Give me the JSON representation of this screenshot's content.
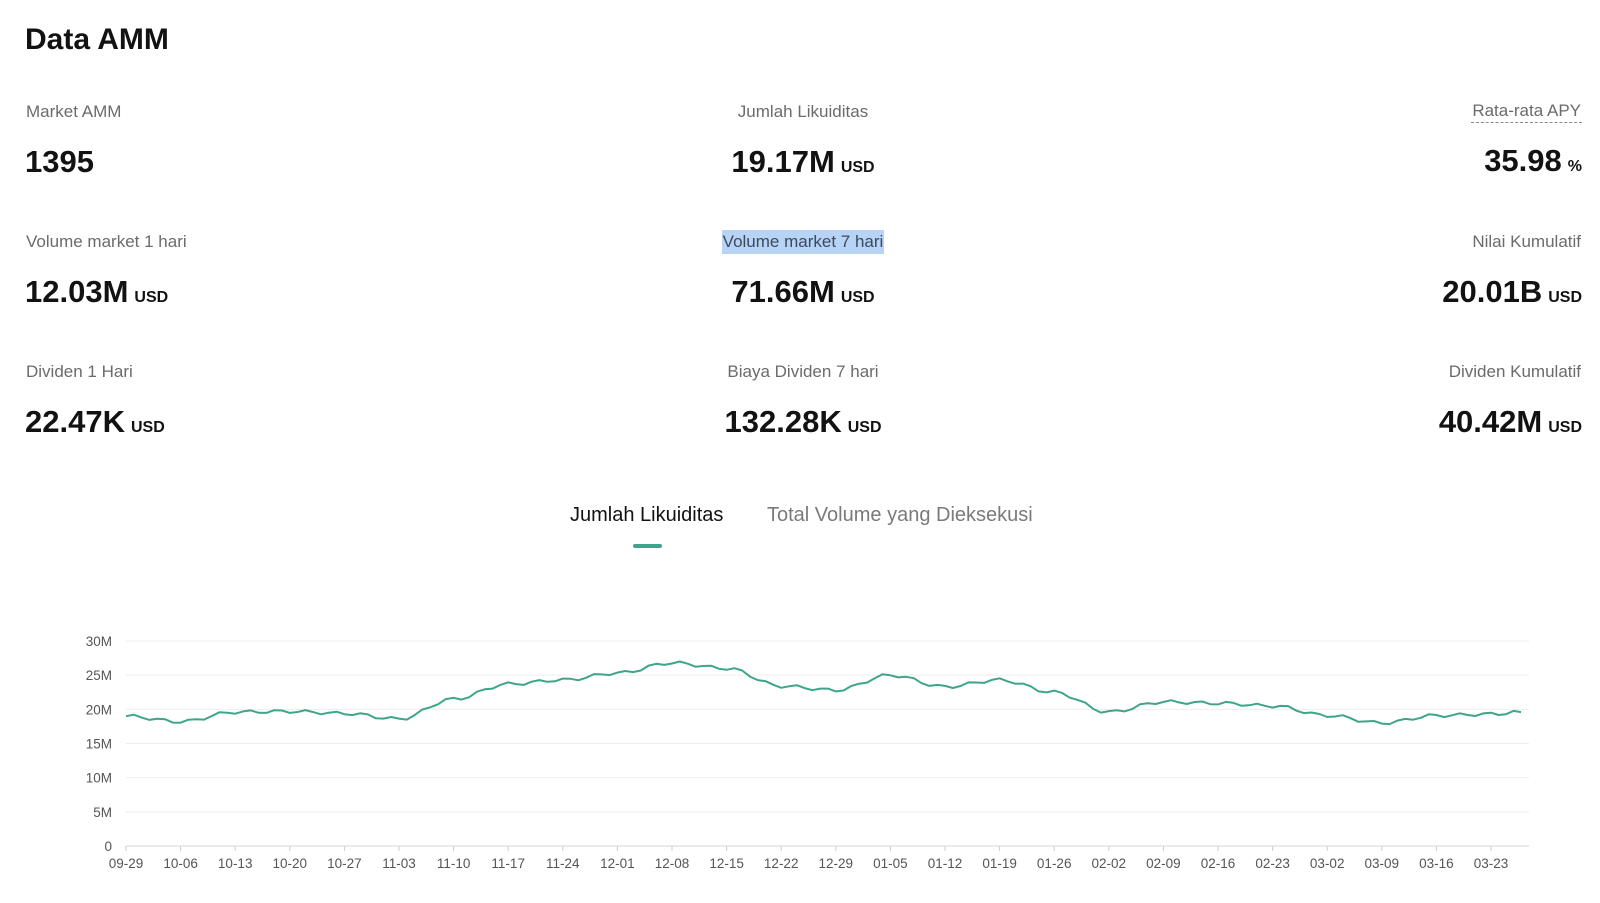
{
  "page": {
    "title": "Data AMM"
  },
  "stats": [
    {
      "label": "Market AMM",
      "value": "1395",
      "unit": ""
    },
    {
      "label": "Jumlah Likuiditas",
      "value": "19.17M",
      "unit": "USD"
    },
    {
      "label": "Rata-rata APY",
      "value": "35.98",
      "unit": "%"
    },
    {
      "label": "Volume market 1 hari",
      "value": "12.03M",
      "unit": "USD"
    },
    {
      "label": "Volume market 7 hari",
      "value": "71.66M",
      "unit": "USD"
    },
    {
      "label": "Nilai Kumulatif",
      "value": "20.01B",
      "unit": "USD"
    },
    {
      "label": "Dividen 1 Hari",
      "value": "22.47K",
      "unit": "USD"
    },
    {
      "label": "Biaya Dividen 7 hari",
      "value": "132.28K",
      "unit": "USD"
    },
    {
      "label": "Dividen Kumulatif",
      "value": "40.42M",
      "unit": "USD"
    }
  ],
  "tabs": [
    {
      "label": "Jumlah Likuiditas",
      "active": true
    },
    {
      "label": "Total Volume yang Dieksekusi",
      "active": false
    }
  ],
  "colors": {
    "accent": "#3fa58a",
    "selection_highlight": "#b7d3f5"
  },
  "chart_data": {
    "type": "line",
    "title": "",
    "xlabel": "",
    "ylabel": "",
    "x_ticks": [
      "09-29",
      "10-06",
      "10-13",
      "10-20",
      "10-27",
      "11-03",
      "11-10",
      "11-17",
      "11-24",
      "12-01",
      "12-08",
      "12-15",
      "12-22",
      "12-29",
      "01-05",
      "01-12",
      "01-19",
      "01-26",
      "02-02",
      "02-09",
      "02-16",
      "02-23",
      "03-02",
      "03-09",
      "03-16",
      "03-23"
    ],
    "y_ticks": [
      "0",
      "5M",
      "10M",
      "15M",
      "20M",
      "25M",
      "30M"
    ],
    "ylim": [
      0,
      30
    ],
    "y_unit": "M",
    "grid": true,
    "series": [
      {
        "color": "#3fa58a",
        "x": [
          "09-29",
          "10-06",
          "10-13",
          "10-20",
          "10-27",
          "11-03",
          "11-10",
          "11-17",
          "11-24",
          "12-01",
          "12-08",
          "12-15",
          "12-22",
          "12-29",
          "01-05",
          "01-12",
          "01-19",
          "01-26",
          "02-02",
          "02-09",
          "02-16",
          "02-23",
          "03-02",
          "03-09",
          "03-16",
          "03-23",
          "03-27"
        ],
        "values": [
          19.0,
          18.2,
          19.6,
          19.7,
          19.4,
          18.6,
          21.5,
          23.7,
          24.3,
          25.3,
          26.8,
          26.0,
          23.4,
          22.8,
          25.0,
          23.3,
          24.3,
          22.5,
          19.6,
          21.1,
          20.9,
          20.5,
          19.1,
          18.0,
          19.1,
          19.3,
          19.6
        ]
      }
    ]
  }
}
